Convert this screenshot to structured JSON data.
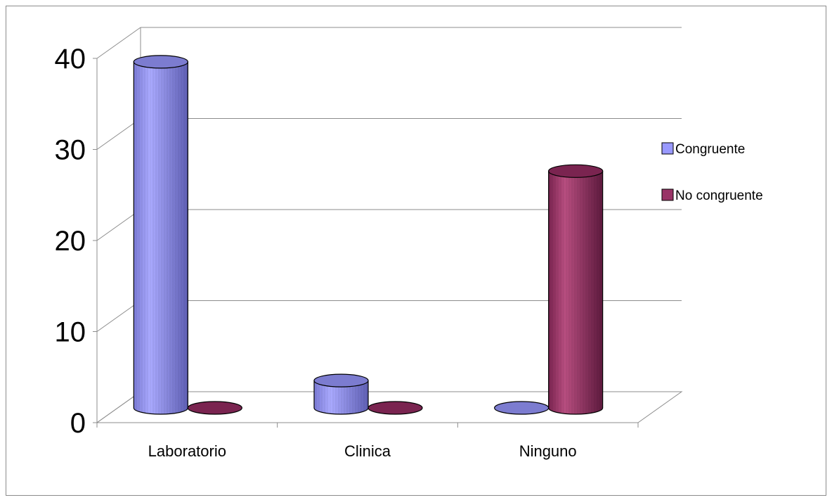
{
  "chart_data": {
    "type": "bar",
    "style": "3d-cylinder",
    "categories": [
      "Laboratorio",
      "Clinica",
      "Ninguno"
    ],
    "series": [
      {
        "name": "Congruente",
        "values": [
          38,
          3,
          0
        ],
        "color": "#9999ff"
      },
      {
        "name": "No congruente",
        "values": [
          0,
          0,
          26
        ],
        "color": "#993366"
      }
    ],
    "y_ticks": [
      "0",
      "10",
      "20",
      "30",
      "40"
    ],
    "ylim": [
      0,
      40
    ],
    "grid": true,
    "legend": "right",
    "title": "",
    "xlabel": "",
    "ylabel": ""
  }
}
